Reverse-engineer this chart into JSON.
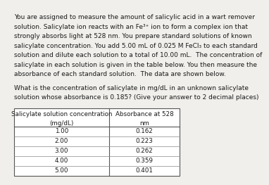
{
  "para_lines": [
    "You are assigned to measure the amount of salicylic acid in a wart remover",
    "solution. Salicylate ion reacts with an Fe³⁺ ion to form a complex ion that",
    "strongly absorbs light at 528 nm. You prepare standard solutions of known",
    "salicylate concentration. You add 5.00 mL of 0.025 M FeCl₃ to each standard",
    "solution and dilute each solution to a total of 10.00 mL.  The concentration of",
    "salicylate in each solution is given in the table below. You then measure the",
    "absorbance of each standard solution.  The data are shown below."
  ],
  "question_lines": [
    "What is the concentration of salicylate in mg/dL in an unknown salicylate",
    "solution whose absorbance is 0.185? (Give your answer to 2 decimal places)"
  ],
  "col1_header_line1": "Salicylate solution concentration",
  "col1_header_line2": "(mg/dL)",
  "col2_header_line1": "Absorbance at 528",
  "col2_header_line2": "nm",
  "concentrations": [
    "1.00",
    "2.00",
    "3.00",
    "4.00",
    "5.00"
  ],
  "absorbances": [
    "0.162",
    "0.223",
    "0.262",
    "0.359",
    "0.401"
  ],
  "bg_color": "#f0efeb",
  "text_color": "#1a1a1a",
  "font_size_body": 6.5,
  "font_size_table": 6.3
}
